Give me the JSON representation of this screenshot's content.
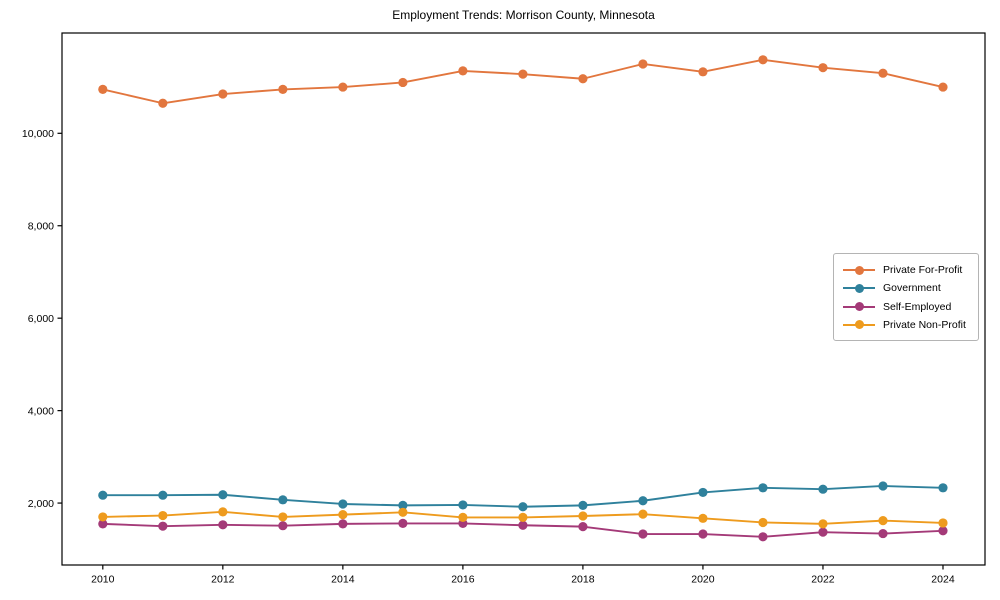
{
  "chart_data": {
    "type": "line",
    "title": "Employment Trends: Morrison County, Minnesota",
    "x": [
      2010,
      2011,
      2012,
      2013,
      2014,
      2015,
      2016,
      2017,
      2018,
      2019,
      2020,
      2021,
      2022,
      2023,
      2024
    ],
    "series": [
      {
        "name": "Private For-Profit",
        "color": "#e2763e",
        "values": [
          10950,
          10650,
          10850,
          10950,
          11000,
          11100,
          11350,
          11280,
          11180,
          11500,
          11330,
          11590,
          11420,
          11300,
          11000
        ]
      },
      {
        "name": "Government",
        "color": "#2f819c",
        "values": [
          2170,
          2170,
          2180,
          2070,
          1980,
          1950,
          1960,
          1920,
          1950,
          2050,
          2230,
          2330,
          2300,
          2370,
          2330
        ]
      },
      {
        "name": "Self-Employed",
        "color": "#a43a78",
        "values": [
          1550,
          1500,
          1530,
          1510,
          1550,
          1560,
          1560,
          1520,
          1490,
          1330,
          1330,
          1270,
          1370,
          1340,
          1400
        ]
      },
      {
        "name": "Private Non-Profit",
        "color": "#ee9b1e",
        "values": [
          1700,
          1730,
          1810,
          1700,
          1750,
          1800,
          1690,
          1690,
          1720,
          1760,
          1670,
          1580,
          1550,
          1620,
          1570
        ]
      }
    ],
    "xlabel": "",
    "ylabel": "",
    "xlim": [
      2009.32,
      2024.7
    ],
    "ylim": [
      660,
      12170
    ],
    "grid": false,
    "legend_position": "right",
    "xticks": [
      {
        "value": 2010,
        "label": "2010"
      },
      {
        "value": 2012,
        "label": "2012"
      },
      {
        "value": 2014,
        "label": "2014"
      },
      {
        "value": 2016,
        "label": "2016"
      },
      {
        "value": 2018,
        "label": "2018"
      },
      {
        "value": 2020,
        "label": "2020"
      },
      {
        "value": 2022,
        "label": "2022"
      },
      {
        "value": 2024,
        "label": "2024"
      }
    ],
    "yticks": [
      {
        "value": 2000,
        "label": "2,000"
      },
      {
        "value": 4000,
        "label": "4,000"
      },
      {
        "value": 6000,
        "label": "6,000"
      },
      {
        "value": 8000,
        "label": "8,000"
      },
      {
        "value": 10000,
        "label": "10,000"
      }
    ]
  }
}
